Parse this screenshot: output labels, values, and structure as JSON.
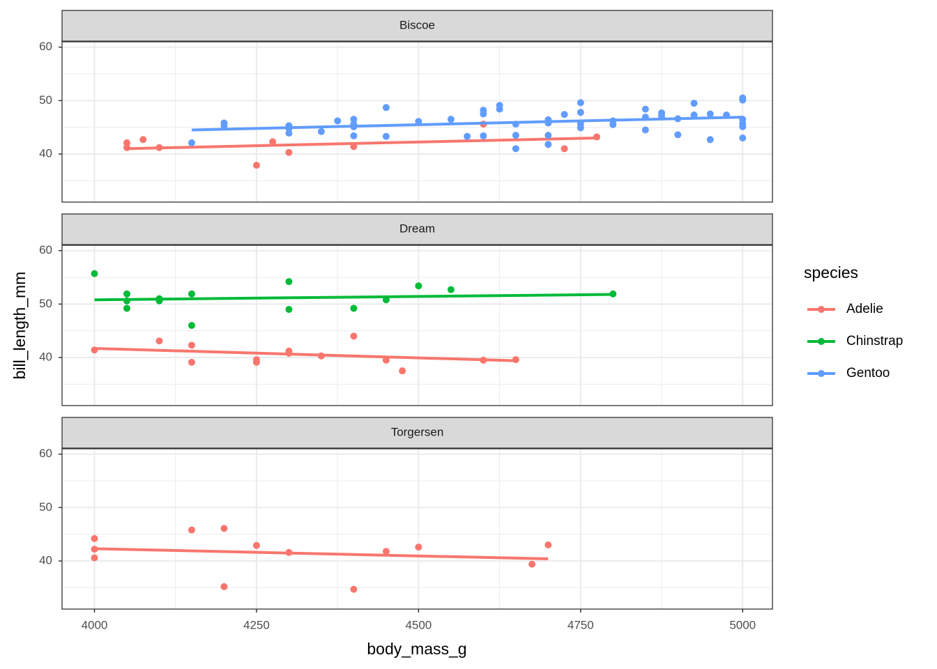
{
  "chart_data": {
    "type": "scatter",
    "xlabel": "body_mass_g",
    "ylabel": "bill_length_mm",
    "xlim": [
      3950,
      5046
    ],
    "xticks": [
      4000,
      4250,
      4500,
      4750,
      5000
    ],
    "minor_xticks": [
      4125,
      4375,
      4625,
      4875
    ],
    "ylim": [
      31,
      61
    ],
    "yticks": [
      40,
      50,
      60
    ],
    "minor_yticks": [
      35,
      45,
      55
    ],
    "grid": true,
    "legend": {
      "title": "species",
      "position": "right",
      "entries": [
        {
          "name": "Adelie",
          "color": "#F8766D"
        },
        {
          "name": "Chinstrap",
          "color": "#00BA38"
        },
        {
          "name": "Gentoo",
          "color": "#619CFF"
        }
      ]
    },
    "panels": [
      {
        "title": "Biscoe",
        "series": [
          {
            "name": "Adelie",
            "color": "#F8766D",
            "x": [
              4050,
              4050,
              4075,
              4100,
              4250,
              4275,
              4300,
              4400,
              4600,
              4725,
              4775
            ],
            "values": [
              42.1,
              41.2,
              42.7,
              41.2,
              37.9,
              42.3,
              40.3,
              41.4,
              45.6,
              41.0,
              43.2
            ],
            "fit": {
              "x": [
                4050,
                4775
              ],
              "values": [
                41.0,
                43.0
              ]
            }
          },
          {
            "name": "Gentoo",
            "color": "#619CFF",
            "x": [
              4150,
              4200,
              4200,
              4300,
              4300,
              4300,
              4350,
              4375,
              4400,
              4400,
              4400,
              4400,
              4450,
              4450,
              4500,
              4550,
              4575,
              4600,
              4600,
              4600,
              4625,
              4625,
              4650,
              4650,
              4650,
              4700,
              4700,
              4700,
              4700,
              4725,
              4750,
              4750,
              4750,
              4750,
              4800,
              4800,
              4850,
              4850,
              4850,
              4875,
              4875,
              4900,
              4900,
              4925,
              4925,
              4950,
              4950,
              4975,
              5000,
              5000,
              5000,
              5000,
              5000,
              5000
            ],
            "values": [
              42.1,
              45.8,
              45.3,
              45.3,
              44.8,
              43.9,
              44.2,
              46.2,
              46.5,
              45.6,
              45.1,
              43.4,
              48.7,
              43.3,
              46.1,
              46.5,
              43.3,
              48.2,
              47.5,
              43.4,
              49.1,
              48.4,
              45.6,
              43.5,
              41.0,
              46.4,
              45.8,
              43.5,
              41.8,
              47.4,
              49.6,
              47.8,
              45.6,
              44.9,
              46.2,
              45.5,
              48.4,
              46.9,
              44.5,
              47.7,
              47.1,
              46.6,
              43.6,
              49.5,
              47.3,
              47.5,
              42.7,
              47.3,
              50.5,
              50.1,
              46.5,
              45.7,
              45.1,
              43.0
            ],
            "fit": {
              "x": [
                4150,
                5000
              ],
              "values": [
                44.5,
                46.9
              ]
            }
          }
        ]
      },
      {
        "title": "Dream",
        "series": [
          {
            "name": "Adelie",
            "color": "#F8766D",
            "x": [
              4000,
              4100,
              4150,
              4150,
              4250,
              4250,
              4300,
              4300,
              4350,
              4400,
              4450,
              4475,
              4600,
              4650
            ],
            "values": [
              41.4,
              43.1,
              42.3,
              39.1,
              39.6,
              39.1,
              41.2,
              40.8,
              40.3,
              44.0,
              39.5,
              37.5,
              39.5,
              39.6
            ],
            "fit": {
              "x": [
                4000,
                4650
              ],
              "values": [
                41.7,
                39.4
              ]
            }
          },
          {
            "name": "Chinstrap",
            "color": "#00BA38",
            "x": [
              4000,
              4050,
              4050,
              4050,
              4100,
              4100,
              4150,
              4150,
              4300,
              4300,
              4400,
              4450,
              4500,
              4550,
              4800
            ],
            "values": [
              55.7,
              51.9,
              50.6,
              49.2,
              51.0,
              50.6,
              51.9,
              46.0,
              54.2,
              49.0,
              49.2,
              50.8,
              53.4,
              52.7,
              51.9
            ],
            "fit": {
              "x": [
                4000,
                4800
              ],
              "values": [
                50.8,
                51.8
              ]
            }
          }
        ]
      },
      {
        "title": "Torgersen",
        "series": [
          {
            "name": "Adelie",
            "color": "#F8766D",
            "x": [
              4000,
              4000,
              4000,
              4150,
              4200,
              4200,
              4250,
              4300,
              4400,
              4450,
              4500,
              4675,
              4700
            ],
            "values": [
              44.2,
              42.2,
              40.6,
              45.8,
              46.1,
              35.2,
              42.9,
              41.6,
              34.7,
              41.8,
              42.6,
              39.4,
              43.0
            ],
            "fit": {
              "x": [
                4000,
                4700
              ],
              "values": [
                42.3,
                40.4
              ]
            }
          }
        ]
      }
    ]
  }
}
